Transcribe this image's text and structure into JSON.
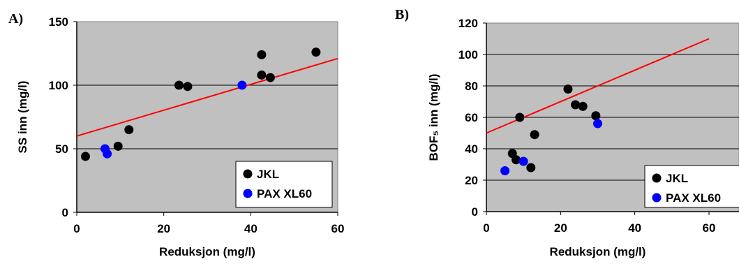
{
  "colors": {
    "plot_bg": "#c0c0c0",
    "jkl": "#000000",
    "pax": "#0000ff",
    "trend": "#ff0000"
  },
  "chart_data": [
    {
      "panel_label": "A)",
      "type": "scatter",
      "xlabel": "Reduksjon (mg/l)",
      "ylabel": "SS inn (mg/l)",
      "xlim": [
        0,
        60
      ],
      "ylim": [
        0,
        150
      ],
      "xticks": [
        "0",
        "20",
        "40",
        "60"
      ],
      "yticks": [
        "0",
        "50",
        "100",
        "150"
      ],
      "grid": true,
      "legend": "bottom-right",
      "series": [
        {
          "name": "JKL",
          "color": "#000000",
          "points": [
            [
              2,
              44
            ],
            [
              9.5,
              52
            ],
            [
              12,
              65
            ],
            [
              23.5,
              100
            ],
            [
              25.5,
              99
            ],
            [
              42.5,
              124
            ],
            [
              42.5,
              108
            ],
            [
              44.5,
              106
            ],
            [
              55,
              126
            ]
          ]
        },
        {
          "name": "PAX XL60",
          "color": "#0000ff",
          "points": [
            [
              6.5,
              50
            ],
            [
              7,
              46
            ],
            [
              38,
              100
            ]
          ]
        }
      ],
      "trendline": {
        "color": "#ff0000",
        "from": [
          0,
          60
        ],
        "to": [
          60,
          121
        ]
      }
    },
    {
      "panel_label": "B)",
      "type": "scatter",
      "xlabel": "Reduksjon (mg/l)",
      "ylabel": "BOF₅ inn (mg/l)",
      "xlim": [
        0,
        60
      ],
      "ylim": [
        0,
        120
      ],
      "xticks": [
        "0",
        "20",
        "40",
        "60"
      ],
      "yticks": [
        "0",
        "20",
        "40",
        "60",
        "80",
        "100",
        "120"
      ],
      "grid": true,
      "legend": "bottom-right",
      "series": [
        {
          "name": "JKL",
          "color": "#000000",
          "points": [
            [
              7,
              37
            ],
            [
              8,
              33
            ],
            [
              9,
              60
            ],
            [
              12,
              28
            ],
            [
              13,
              49
            ],
            [
              22,
              78
            ],
            [
              24,
              68
            ],
            [
              26,
              67
            ],
            [
              29.5,
              61
            ]
          ]
        },
        {
          "name": "PAX XL60",
          "color": "#0000ff",
          "points": [
            [
              5,
              26
            ],
            [
              10,
              32
            ],
            [
              30,
              56
            ]
          ]
        }
      ],
      "trendline": {
        "color": "#ff0000",
        "from": [
          0,
          50
        ],
        "to": [
          60,
          110
        ]
      }
    }
  ]
}
